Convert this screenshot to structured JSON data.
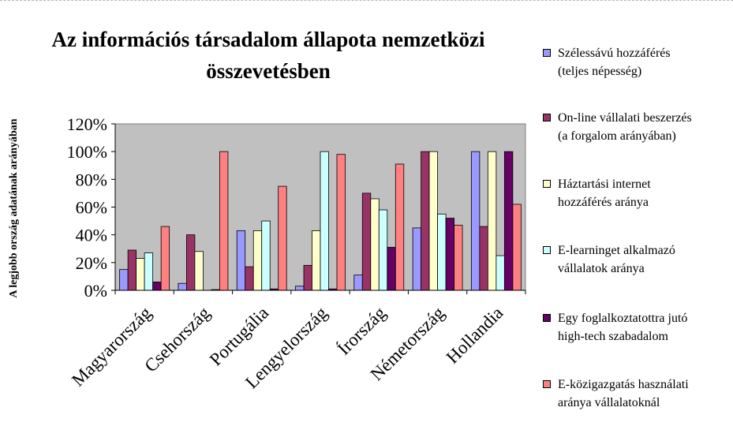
{
  "chart_data": {
    "type": "bar",
    "title": "Az információs társadalom állapota nemzetközi\nösszevetésben",
    "ylabel": "A legjobb ország adatának arányában",
    "xlabel": "",
    "ylim": [
      0,
      120
    ],
    "yticks": [
      "0%",
      "20%",
      "40%",
      "60%",
      "80%",
      "100%",
      "120%"
    ],
    "grid": false,
    "legend_position": "right",
    "categories": [
      "Magyarország",
      "Csehország",
      "Portugália",
      "Lengyelország",
      "Írország",
      "Németország",
      "Hollandia"
    ],
    "series": [
      {
        "name": "Szélessávú hozzáférés\n(teljes népesség)",
        "color": "#9999ff",
        "values": [
          15,
          5,
          43,
          3,
          11,
          45,
          100
        ]
      },
      {
        "name": "On-line vállalati beszerzés\n(a forgalom arányában)",
        "color": "#993366",
        "values": [
          29,
          40,
          17,
          18,
          70,
          100,
          46
        ]
      },
      {
        "name": "Háztartási internet\nhozzáférés aránya",
        "color": "#ffffcc",
        "values": [
          23,
          28,
          43,
          43,
          66,
          100,
          100
        ]
      },
      {
        "name": "E-learninget alkalmazó\nvállalatok aránya",
        "color": "#ccffff",
        "values": [
          27,
          0,
          50,
          100,
          58,
          55,
          25
        ]
      },
      {
        "name": "Egy foglalkoztatottra jutó\nhigh-tech szabadalom",
        "color": "#660066",
        "values": [
          6,
          0.5,
          1,
          1,
          31,
          52,
          100
        ]
      },
      {
        "name": "E-közigazgatás használati\naránya vállalatoknál",
        "color": "#ff8080",
        "values": [
          46,
          100,
          75,
          98,
          91,
          47,
          62
        ]
      }
    ]
  }
}
